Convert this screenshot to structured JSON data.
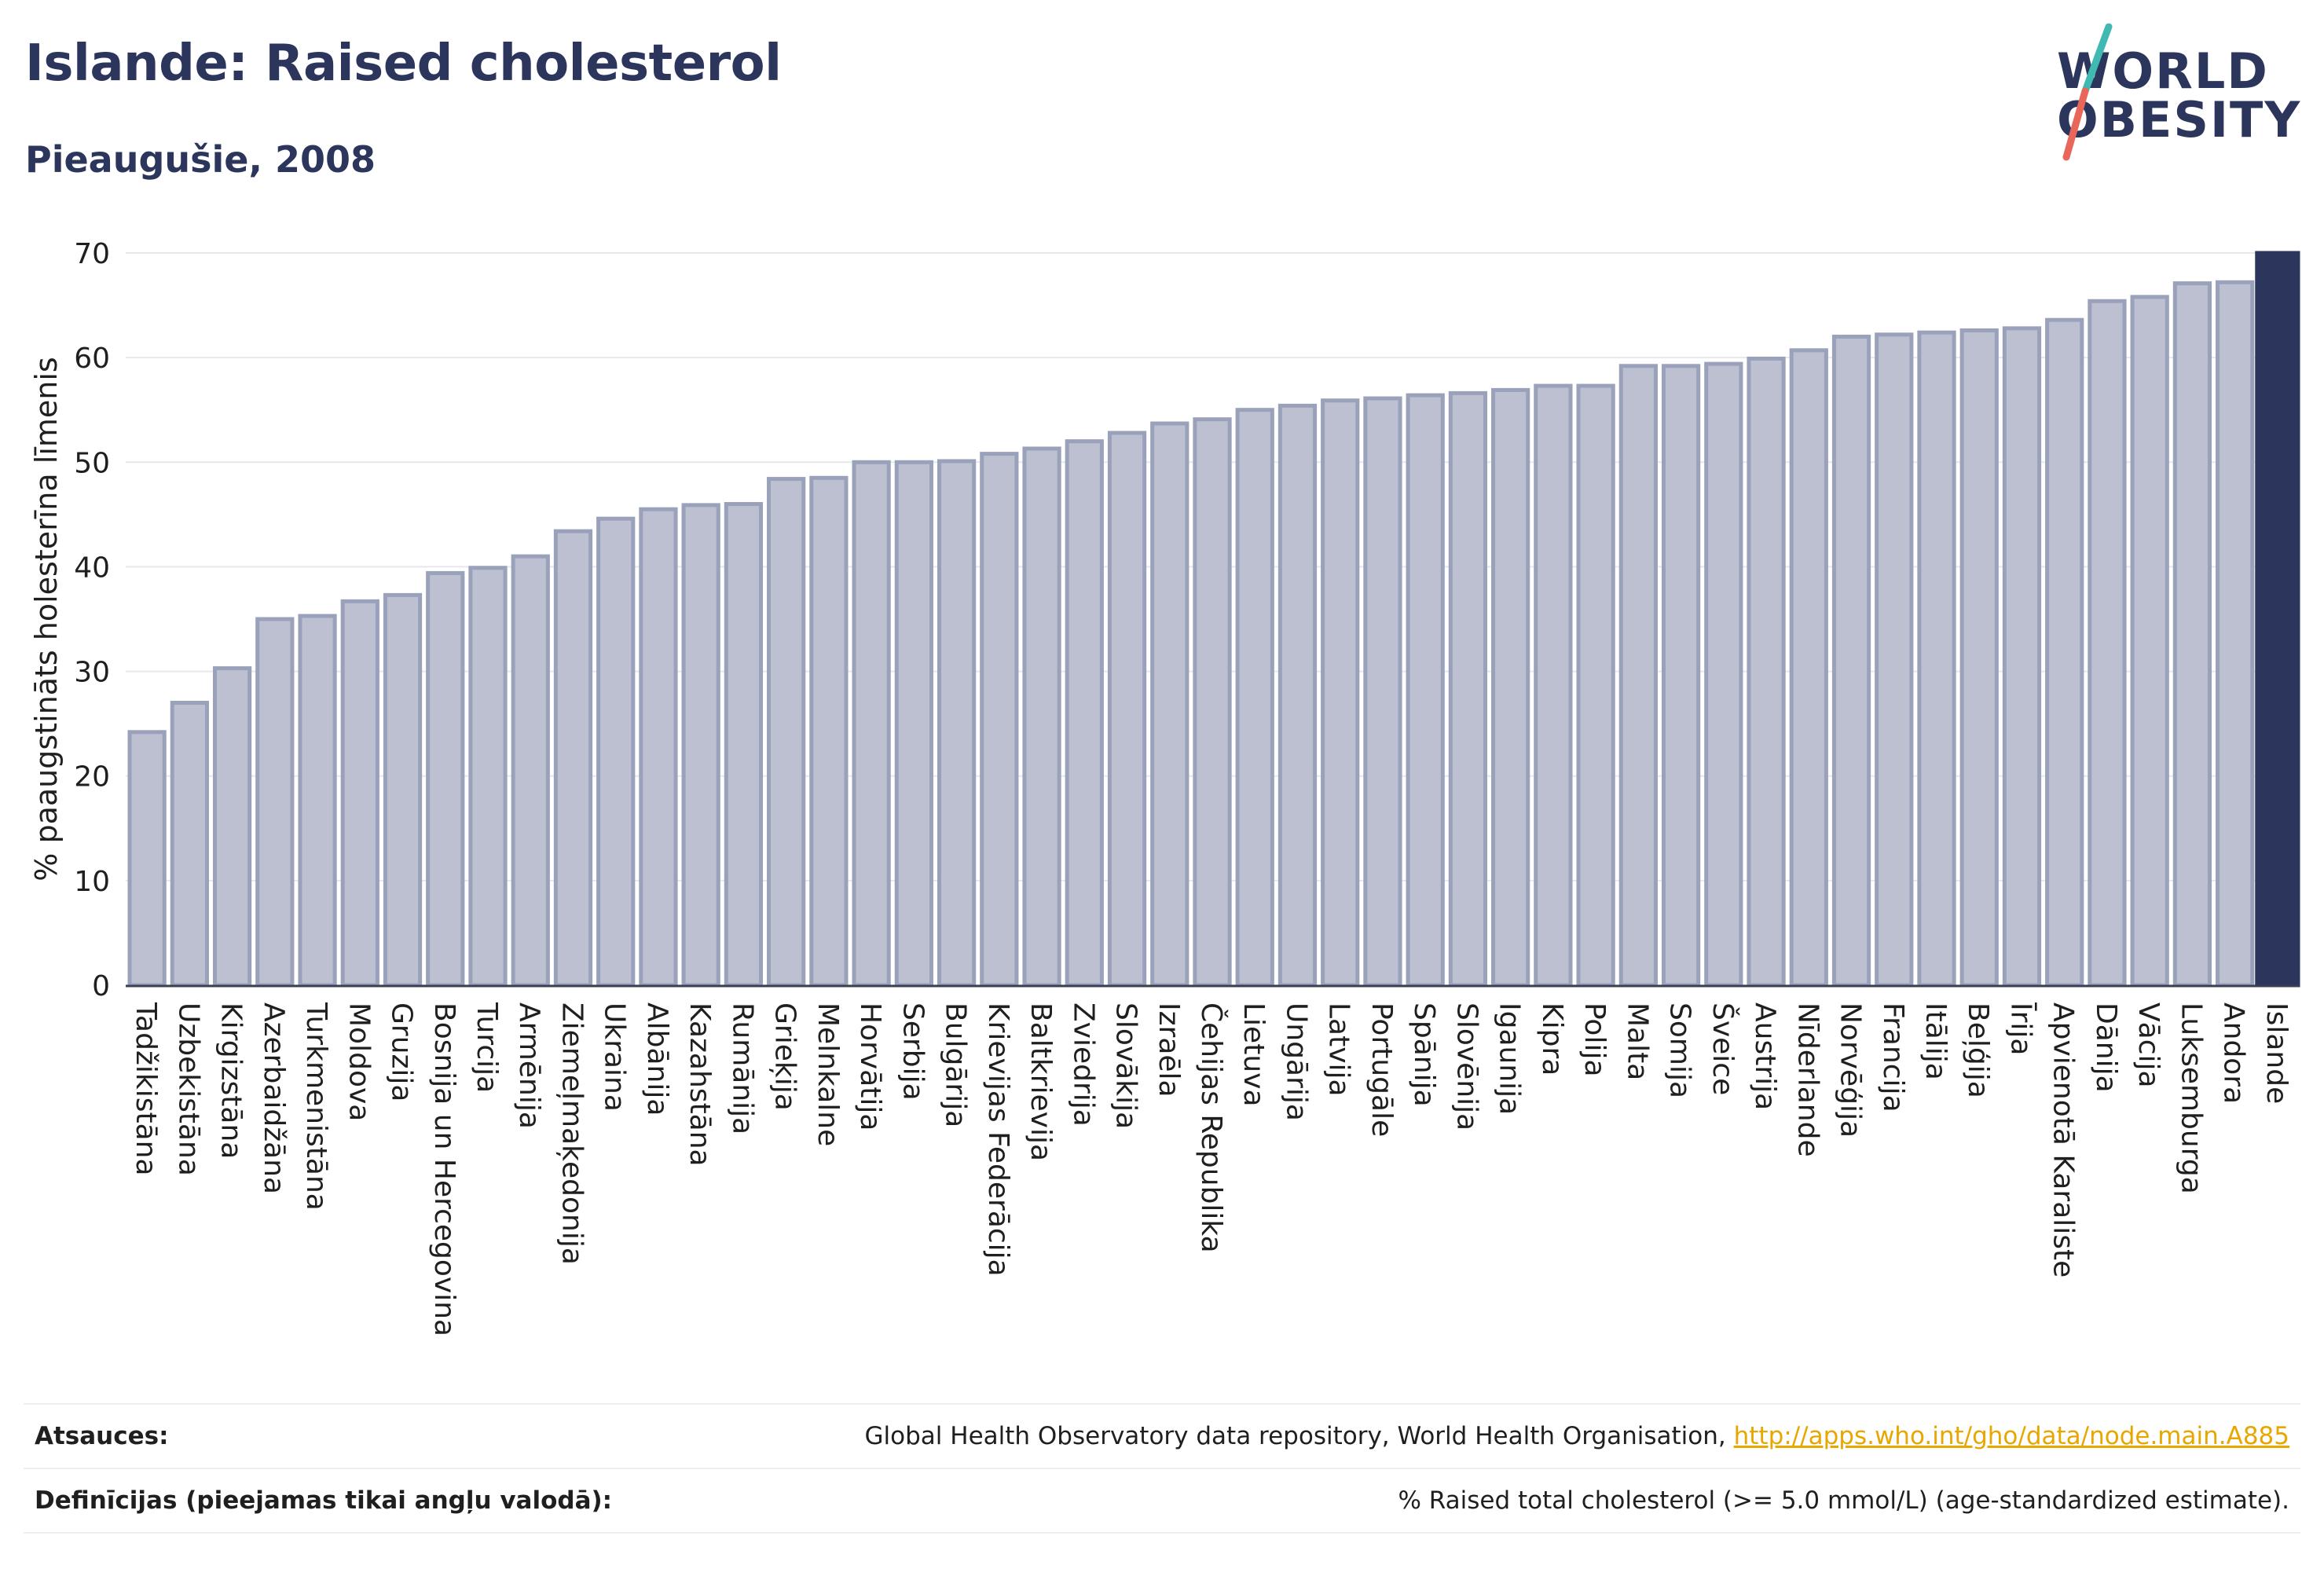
{
  "header": {
    "title": "Islande: Raised cholesterol",
    "subtitle": "Pieaugušie, 2008"
  },
  "logo": {
    "line1": "WORLD",
    "line2": "OBESITY",
    "accent_colors": [
      "#3fb9b2",
      "#e8675a"
    ]
  },
  "footer": {
    "sources_label": "Atsauces:",
    "sources_text": "Global Health Observatory data repository, World Health Organisation, ",
    "sources_link": "http://apps.who.int/gho/data/node.main.A885",
    "definitions_label": "Definīcijas (pieejamas tikai angļu valodā):",
    "definitions_text": "% Raised total cholesterol (>= 5.0 mmol/L) (age-standardized estimate)."
  },
  "colors": {
    "bar_fill": "#bcc0d0",
    "bar_stroke": "#9aa1ba",
    "highlight": "#2c355c",
    "grid": "#e6e8ee",
    "text": "#1f1f1f",
    "brand": "#2c355c"
  },
  "chart_data": {
    "type": "bar",
    "ylabel": "% paaugstināts holesterīna līmenis",
    "ylim": [
      0,
      70
    ],
    "yticks": [
      0,
      10,
      20,
      30,
      40,
      50,
      60,
      70
    ],
    "grid": true,
    "highlight": "Islande",
    "categories": [
      "Tadžikistāna",
      "Uzbekistāna",
      "Kirgizstāna",
      "Azerbaidžāna",
      "Turkmenistāna",
      "Moldova",
      "Gruzija",
      "Bosnija un Hercegovina",
      "Turcija",
      "Armēnija",
      "Ziemeļmaķedonija",
      "Ukraina",
      "Albānija",
      "Kazahstāna",
      "Rumānija",
      "Grieķija",
      "Melnkalne",
      "Horvātija",
      "Serbija",
      "Bulgārija",
      "Krievijas Federācija",
      "Baltkrievija",
      "Zviedrija",
      "Slovākija",
      "Izraēla",
      "Čehijas Republika",
      "Lietuva",
      "Ungārija",
      "Latvija",
      "Portugāle",
      "Spānija",
      "Slovēnija",
      "Igaunija",
      "Kipra",
      "Polija",
      "Malta",
      "Somija",
      "Šveice",
      "Austrija",
      "Nīderlande",
      "Norvēģija",
      "Francija",
      "Itālija",
      "Beļģija",
      "Īrija",
      "Apvienotā Karaliste",
      "Dānija",
      "Vācija",
      "Luksemburga",
      "Andora",
      "Islande"
    ],
    "values": [
      24.2,
      27.0,
      30.3,
      35.0,
      35.3,
      36.7,
      37.3,
      39.4,
      39.9,
      41.0,
      43.4,
      44.6,
      45.5,
      45.9,
      46.0,
      48.4,
      48.5,
      50.0,
      50.0,
      50.1,
      50.8,
      51.3,
      52.0,
      52.8,
      53.7,
      54.1,
      55.0,
      55.4,
      55.9,
      56.1,
      56.4,
      56.6,
      56.9,
      57.3,
      57.3,
      59.2,
      59.2,
      59.4,
      59.9,
      60.7,
      62.0,
      62.2,
      62.4,
      62.6,
      62.8,
      63.6,
      65.4,
      65.8,
      67.1,
      67.2,
      70.1
    ]
  }
}
